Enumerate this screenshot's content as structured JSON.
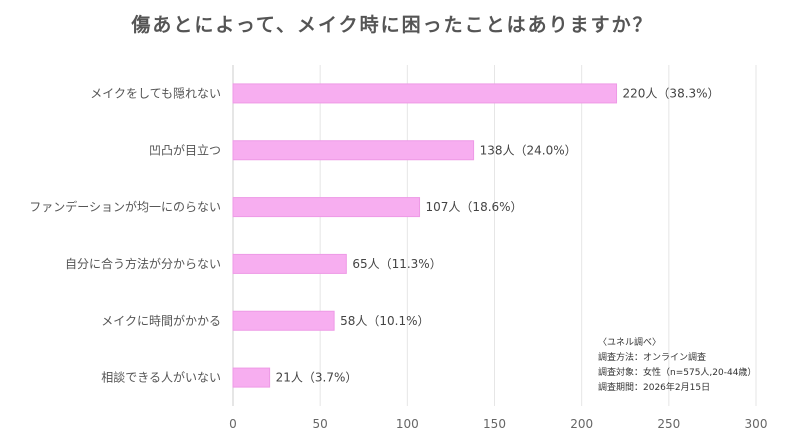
{
  "chart_data": {
    "type": "bar",
    "orientation": "horizontal",
    "title": "傷あとによって、メイク時に困ったことはありますか？",
    "categories": [
      "メイクをしても隠れない",
      "凹凸が目立つ",
      "ファンデーションが均一にのらない",
      "自分に合う方法が分からない",
      "メイクに時間がかかる",
      "相談できる人がいない"
    ],
    "values": [
      220,
      138,
      107,
      65,
      58,
      21
    ],
    "data_labels": [
      "220人（38.3%）",
      "138人（24.0%）",
      "107人（18.6%）",
      "65人（11.3%）",
      "58人（10.1%）",
      "21人（3.7%）"
    ],
    "xlim": [
      0,
      300
    ],
    "xticks": [
      0,
      50,
      100,
      150,
      200,
      250,
      300
    ],
    "bar_color": "#f7aef0",
    "bar_border_color": "#ee9ae6",
    "grid": true
  },
  "note": {
    "source": "〈ユネル調べ〉",
    "method": "調査方法：オンライン調査",
    "target": "調査対象：女性（n=575人,20-44歳）",
    "period": "調査期間：2026年2月15日"
  }
}
